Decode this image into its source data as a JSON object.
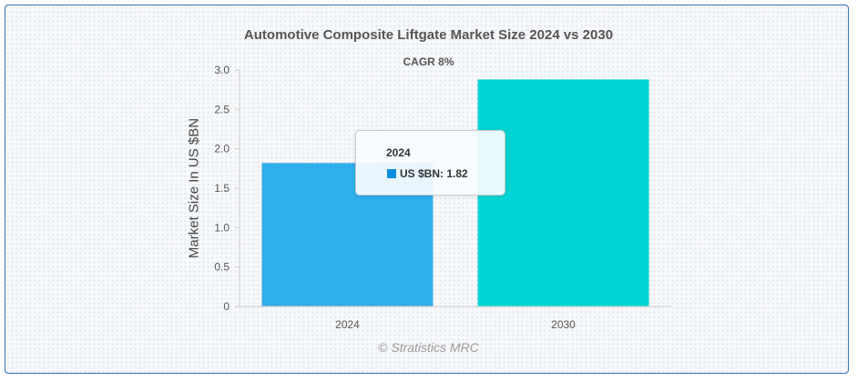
{
  "chart_data": {
    "type": "bar",
    "title": "Automotive Composite Liftgate Market Size 2024 vs 2030",
    "subtitle": "CAGR 8%",
    "ylabel": "Market Size In US $BN",
    "xlabel": "",
    "categories": [
      "2024",
      "2030"
    ],
    "series": [
      {
        "name": "US $BN",
        "values": [
          1.82,
          2.88
        ]
      }
    ],
    "colors": [
      "#2eaeeb",
      "#00d4d4"
    ],
    "ylim": [
      0,
      3.0
    ],
    "yticks": [
      "0",
      "0.5",
      "1.0",
      "1.5",
      "2.0",
      "2.5",
      "3.0"
    ],
    "yticks_values": [
      0,
      0.5,
      1.0,
      1.5,
      2.0,
      2.5,
      3.0
    ],
    "grid": false,
    "legend": "none",
    "tooltip": {
      "title": "2024",
      "label": "US $BN: 1.82",
      "swatch_color": "#0a8fe0"
    },
    "credit": "© Stratistics MRC"
  }
}
